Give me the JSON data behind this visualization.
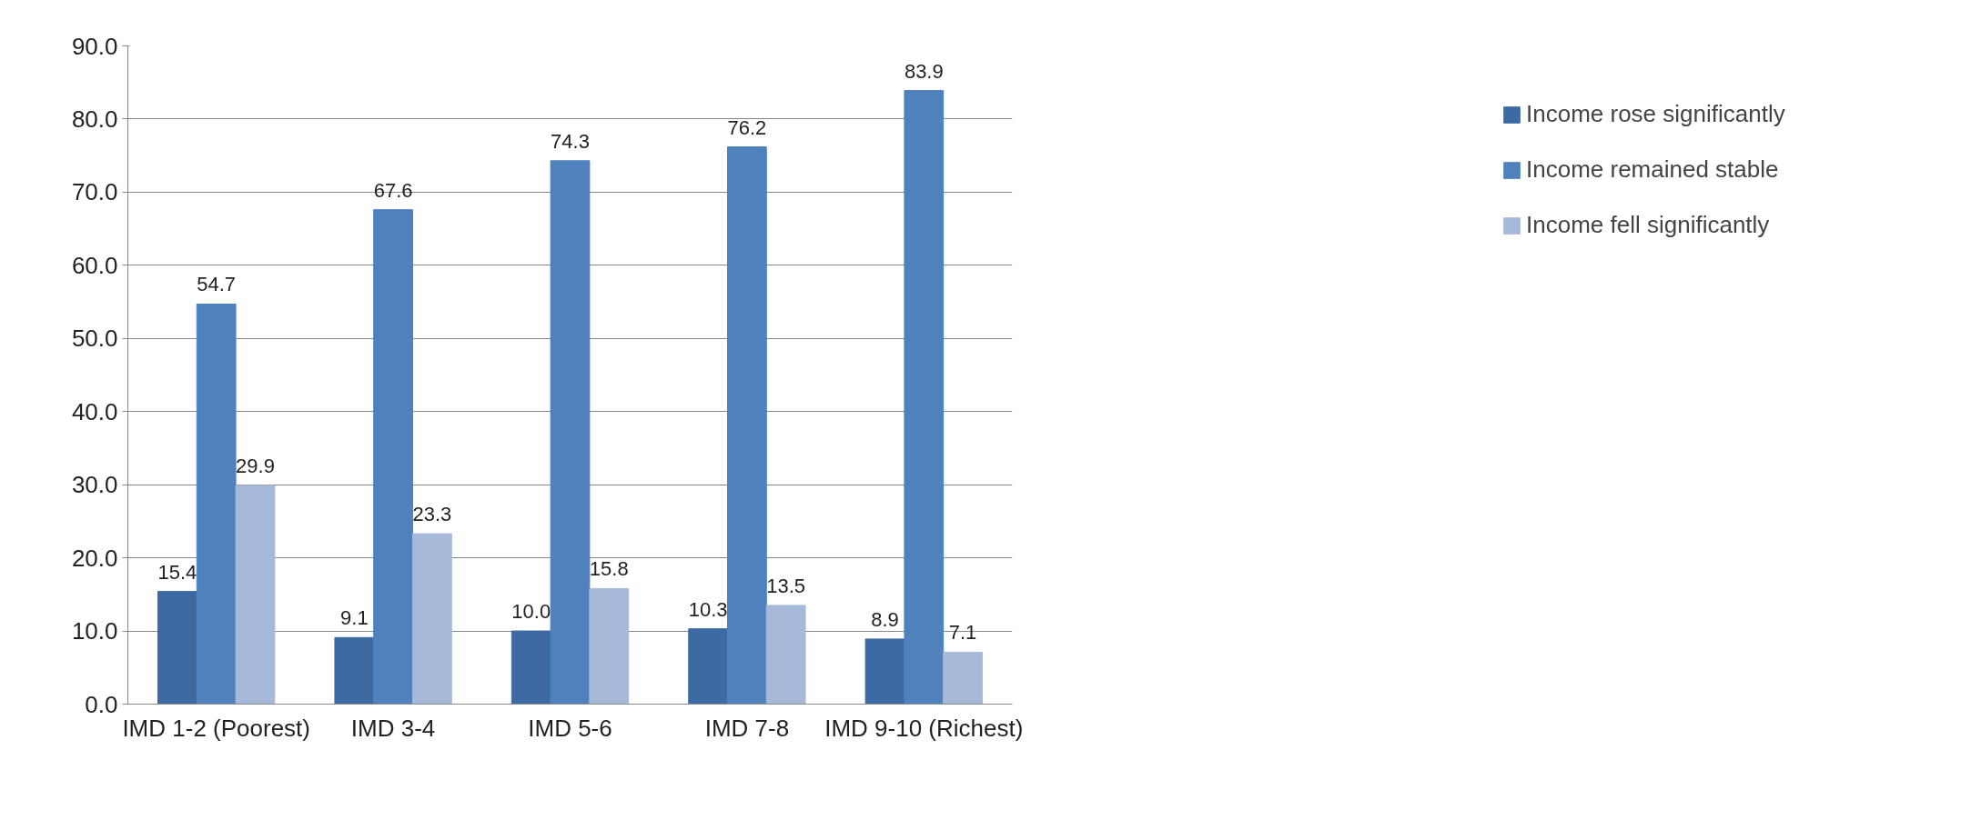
{
  "chart_data": {
    "type": "bar",
    "categories": [
      "IMD 1-2 (Poorest)",
      "IMD 3-4",
      "IMD 5-6",
      "IMD 7-8",
      "IMD 9-10 (Richest)"
    ],
    "series": [
      {
        "name": "Income rose significantly",
        "color": "#3d6aa3",
        "values": [
          15.4,
          9.1,
          10.0,
          10.3,
          8.9
        ],
        "value_labels": [
          "15.4",
          "9.1",
          "10.0",
          "10.3",
          "8.9"
        ]
      },
      {
        "name": "Income remained stable",
        "color": "#4f81bd",
        "values": [
          54.7,
          67.6,
          74.3,
          76.2,
          83.9
        ],
        "value_labels": [
          "54.7",
          "67.6",
          "74.3",
          "76.2",
          "83.9"
        ]
      },
      {
        "name": "Income fell significantly",
        "color": "#a7b9d9",
        "values": [
          29.9,
          23.3,
          15.8,
          13.5,
          7.1
        ],
        "value_labels": [
          "29.9",
          "23.3",
          "15.8",
          "13.5",
          "7.1"
        ]
      }
    ],
    "ylim": [
      0,
      90
    ],
    "yticks": [
      {
        "value": 0,
        "label": "0.0"
      },
      {
        "value": 10,
        "label": "10.0"
      },
      {
        "value": 20,
        "label": "20.0"
      },
      {
        "value": 30,
        "label": "30.0"
      },
      {
        "value": 40,
        "label": "40.0"
      },
      {
        "value": 50,
        "label": "50.0"
      },
      {
        "value": 60,
        "label": "60.0"
      },
      {
        "value": 70,
        "label": "70.0"
      },
      {
        "value": 80,
        "label": "80.0"
      },
      {
        "value": 90,
        "label": "90.0"
      }
    ],
    "grid": "y",
    "legend": "right"
  }
}
